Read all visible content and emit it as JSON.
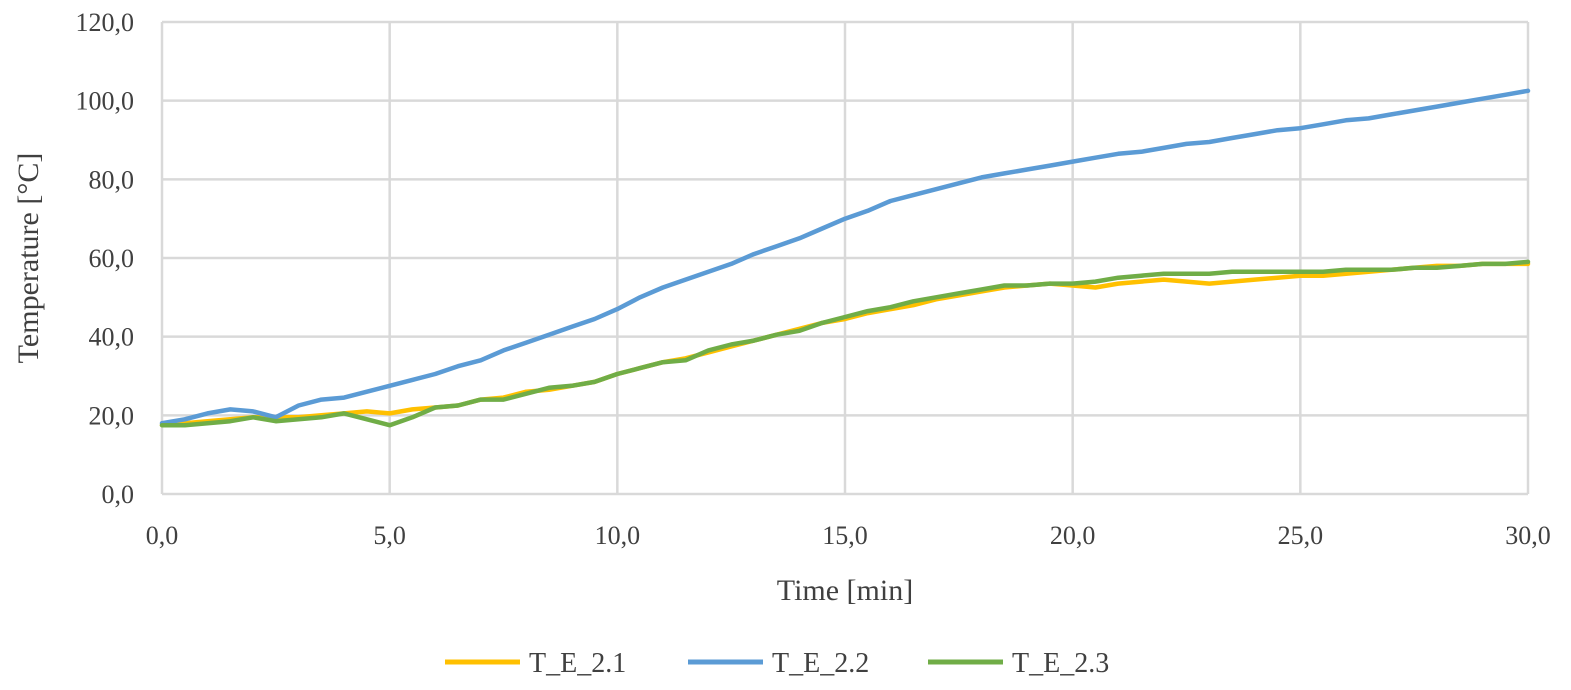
{
  "chart_data": {
    "type": "line",
    "title": "",
    "xlabel": "Time [min]",
    "ylabel": "Temperature [°C]",
    "xlim": [
      0,
      30
    ],
    "ylim": [
      0,
      120
    ],
    "x_ticks": [
      "0,0",
      "5,0",
      "10,0",
      "15,0",
      "20,0",
      "25,0",
      "30,0"
    ],
    "y_ticks": [
      "0,0",
      "20,0",
      "40,0",
      "60,0",
      "80,0",
      "100,0",
      "120,0"
    ],
    "grid": true,
    "legend_position": "bottom",
    "series": [
      {
        "name": "T_E_2.1",
        "color": "#ffc000",
        "x": [
          0,
          0.5,
          1,
          1.5,
          2,
          2.5,
          3,
          3.5,
          4,
          4.5,
          5,
          5.5,
          6,
          6.5,
          7,
          7.5,
          8,
          8.5,
          9,
          9.5,
          10,
          10.5,
          11,
          11.5,
          12,
          12.5,
          13,
          13.5,
          14,
          14.5,
          15,
          15.5,
          16,
          16.5,
          17,
          17.5,
          18,
          18.5,
          19,
          19.5,
          20,
          20.5,
          21,
          21.5,
          22,
          22.5,
          23,
          23.5,
          24,
          24.5,
          25,
          25.5,
          26,
          26.5,
          27,
          27.5,
          28,
          28.5,
          29,
          29.5,
          30
        ],
        "values": [
          17.5,
          18,
          18.5,
          19,
          19.5,
          19.5,
          19.5,
          20,
          20.5,
          21,
          20.5,
          21.5,
          22,
          22.5,
          24,
          24.5,
          26,
          26.5,
          27.5,
          28.5,
          30.5,
          32,
          33.5,
          34.5,
          36,
          37.5,
          39,
          40.5,
          42,
          43.5,
          44.5,
          46,
          47,
          48,
          49.5,
          50.5,
          51.5,
          52.5,
          53,
          53.5,
          53,
          52.5,
          53.5,
          54,
          54.5,
          54,
          53.5,
          54,
          54.5,
          55,
          55.5,
          55.5,
          56,
          56.5,
          57,
          57.5,
          58,
          58,
          58.5,
          58.5,
          58.5
        ]
      },
      {
        "name": "T_E_2.2",
        "color": "#5b9bd5",
        "x": [
          0,
          0.5,
          1,
          1.5,
          2,
          2.5,
          3,
          3.5,
          4,
          4.5,
          5,
          5.5,
          6,
          6.5,
          7,
          7.5,
          8,
          8.5,
          9,
          9.5,
          10,
          10.5,
          11,
          11.5,
          12,
          12.5,
          13,
          13.5,
          14,
          14.5,
          15,
          15.5,
          16,
          16.5,
          17,
          17.5,
          18,
          18.5,
          19,
          19.5,
          20,
          20.5,
          21,
          21.5,
          22,
          22.5,
          23,
          23.5,
          24,
          24.5,
          25,
          25.5,
          26,
          26.5,
          27,
          27.5,
          28,
          28.5,
          29,
          29.5,
          30
        ],
        "values": [
          18,
          19,
          20.5,
          21.5,
          21,
          19.5,
          22.5,
          24,
          24.5,
          26,
          27.5,
          29,
          30.5,
          32.5,
          34,
          36.5,
          38.5,
          40.5,
          42.5,
          44.5,
          47,
          50,
          52.5,
          54.5,
          56.5,
          58.5,
          61,
          63,
          65,
          67.5,
          70,
          72,
          74.5,
          76,
          77.5,
          79,
          80.5,
          81.5,
          82.5,
          83.5,
          84.5,
          85.5,
          86.5,
          87,
          88,
          89,
          89.5,
          90.5,
          91.5,
          92.5,
          93,
          94,
          95,
          95.5,
          96.5,
          97.5,
          98.5,
          99.5,
          100.5,
          101.5,
          102.5
        ]
      },
      {
        "name": "T_E_2.3",
        "color": "#70ad47",
        "x": [
          0,
          0.5,
          1,
          1.5,
          2,
          2.5,
          3,
          3.5,
          4,
          4.5,
          5,
          5.5,
          6,
          6.5,
          7,
          7.5,
          8,
          8.5,
          9,
          9.5,
          10,
          10.5,
          11,
          11.5,
          12,
          12.5,
          13,
          13.5,
          14,
          14.5,
          15,
          15.5,
          16,
          16.5,
          17,
          17.5,
          18,
          18.5,
          19,
          19.5,
          20,
          20.5,
          21,
          21.5,
          22,
          22.5,
          23,
          23.5,
          24,
          24.5,
          25,
          25.5,
          26,
          26.5,
          27,
          27.5,
          28,
          28.5,
          29,
          29.5,
          30
        ],
        "values": [
          17.5,
          17.5,
          18,
          18.5,
          19.5,
          18.5,
          19,
          19.5,
          20.5,
          19,
          17.5,
          19.5,
          22,
          22.5,
          24,
          24,
          25.5,
          27,
          27.5,
          28.5,
          30.5,
          32,
          33.5,
          34,
          36.5,
          38,
          39,
          40.5,
          41.5,
          43.5,
          45,
          46.5,
          47.5,
          49,
          50,
          51,
          52,
          53,
          53,
          53.5,
          53.5,
          54,
          55,
          55.5,
          56,
          56,
          56,
          56.5,
          56.5,
          56.5,
          56.5,
          56.5,
          57,
          57,
          57,
          57.5,
          57.5,
          58,
          58.5,
          58.5,
          59
        ]
      }
    ]
  }
}
